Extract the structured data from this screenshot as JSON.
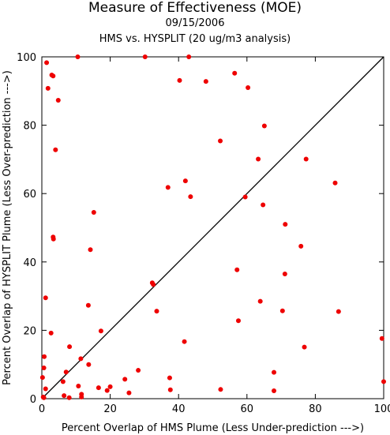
{
  "chart_data": {
    "type": "scatter",
    "title": "Measure of Effectiveness (MOE)",
    "subtitle_date": "09/15/2006",
    "subtitle": "HMS vs. HYSPLIT  (20 ug/m3 analysis)",
    "xlabel": "Percent Overlap of HMS Plume (Less Under-prediction --->)",
    "ylabel": "Percent Overlap of HYSPLIT Plume (Less Over-prediction --->)",
    "xlim": [
      0,
      100
    ],
    "ylim": [
      0,
      100
    ],
    "xticks": [
      "0",
      "20",
      "40",
      "60",
      "80",
      "100"
    ],
    "yticks": [
      "0",
      "20",
      "40",
      "60",
      "80",
      "100"
    ],
    "reference_line": "y = x",
    "point_color": "#ee0000",
    "points": [
      {
        "x": 1.4,
        "y": 98.3
      },
      {
        "x": 10.5,
        "y": 100
      },
      {
        "x": 30.2,
        "y": 100
      },
      {
        "x": 43.0,
        "y": 100
      },
      {
        "x": 2.9,
        "y": 94.7
      },
      {
        "x": 3.3,
        "y": 94.4
      },
      {
        "x": 56.4,
        "y": 95.2
      },
      {
        "x": 40.3,
        "y": 93.1
      },
      {
        "x": 48.0,
        "y": 92.8
      },
      {
        "x": 60.3,
        "y": 91.0
      },
      {
        "x": 1.8,
        "y": 90.8
      },
      {
        "x": 4.8,
        "y": 87.3
      },
      {
        "x": 65.1,
        "y": 79.8
      },
      {
        "x": 52.2,
        "y": 75.4
      },
      {
        "x": 4.0,
        "y": 72.8
      },
      {
        "x": 63.3,
        "y": 70.1
      },
      {
        "x": 77.3,
        "y": 70.1
      },
      {
        "x": 42.0,
        "y": 63.7
      },
      {
        "x": 85.8,
        "y": 63.1
      },
      {
        "x": 36.9,
        "y": 61.8
      },
      {
        "x": 43.5,
        "y": 59.1
      },
      {
        "x": 59.5,
        "y": 59.0
      },
      {
        "x": 64.7,
        "y": 56.7
      },
      {
        "x": 15.2,
        "y": 54.5
      },
      {
        "x": 71.2,
        "y": 51.0
      },
      {
        "x": 3.3,
        "y": 47.3
      },
      {
        "x": 3.4,
        "y": 46.7
      },
      {
        "x": 75.8,
        "y": 44.6
      },
      {
        "x": 14.2,
        "y": 43.6
      },
      {
        "x": 57.1,
        "y": 37.7
      },
      {
        "x": 71.1,
        "y": 36.5
      },
      {
        "x": 32.3,
        "y": 33.9
      },
      {
        "x": 32.6,
        "y": 33.4
      },
      {
        "x": 1.1,
        "y": 29.5
      },
      {
        "x": 63.9,
        "y": 28.5
      },
      {
        "x": 13.6,
        "y": 27.3
      },
      {
        "x": 33.6,
        "y": 25.6
      },
      {
        "x": 70.4,
        "y": 25.7
      },
      {
        "x": 86.8,
        "y": 25.5
      },
      {
        "x": 57.5,
        "y": 22.8
      },
      {
        "x": 17.3,
        "y": 19.8
      },
      {
        "x": 2.7,
        "y": 19.2
      },
      {
        "x": 99.5,
        "y": 17.6
      },
      {
        "x": 41.7,
        "y": 16.7
      },
      {
        "x": 8.1,
        "y": 15.2
      },
      {
        "x": 76.8,
        "y": 15.1
      },
      {
        "x": 0.7,
        "y": 12.3
      },
      {
        "x": 11.4,
        "y": 11.7
      },
      {
        "x": 13.7,
        "y": 10.0
      },
      {
        "x": 0.6,
        "y": 9.0
      },
      {
        "x": 7.1,
        "y": 7.8
      },
      {
        "x": 28.2,
        "y": 8.3
      },
      {
        "x": 67.9,
        "y": 7.7
      },
      {
        "x": 0.2,
        "y": 6.2
      },
      {
        "x": 37.4,
        "y": 6.1
      },
      {
        "x": 24.3,
        "y": 5.7
      },
      {
        "x": 6.2,
        "y": 5.0
      },
      {
        "x": 100,
        "y": 5.0
      },
      {
        "x": 20.0,
        "y": 3.5
      },
      {
        "x": 10.7,
        "y": 3.7
      },
      {
        "x": 16.6,
        "y": 3.2
      },
      {
        "x": 1.1,
        "y": 2.9
      },
      {
        "x": 19.1,
        "y": 2.4
      },
      {
        "x": 37.6,
        "y": 2.6
      },
      {
        "x": 52.3,
        "y": 2.7
      },
      {
        "x": 67.9,
        "y": 2.3
      },
      {
        "x": 25.5,
        "y": 1.7
      },
      {
        "x": 11.6,
        "y": 1.3
      },
      {
        "x": 6.5,
        "y": 0.9
      },
      {
        "x": 0.4,
        "y": 0.5
      },
      {
        "x": 11.6,
        "y": 0.5
      },
      {
        "x": 8.0,
        "y": 0.3
      },
      {
        "x": 0.6,
        "y": 0.3
      }
    ]
  }
}
